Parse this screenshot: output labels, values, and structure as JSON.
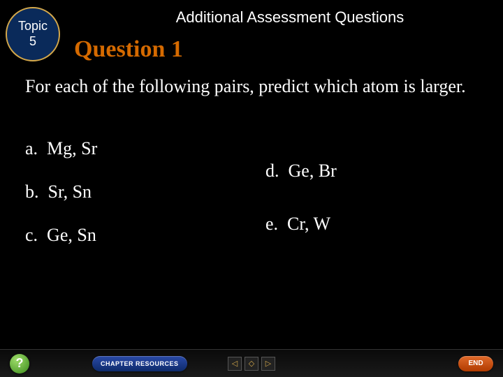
{
  "topic": {
    "label": "Topic",
    "number": "5"
  },
  "header": {
    "title": "Additional Assessment Questions"
  },
  "question": {
    "title": "Question 1",
    "body": "For each of the following pairs, predict which atom is larger."
  },
  "options": {
    "left": [
      {
        "key": "a.",
        "text": "Mg, Sr"
      },
      {
        "key": "b.",
        "text": "Sr, Sn"
      },
      {
        "key": "c.",
        "text": "Ge, Sn"
      }
    ],
    "right": [
      {
        "key": "d.",
        "text": "Ge, Br"
      },
      {
        "key": "e.",
        "text": "Cr, W"
      }
    ]
  },
  "footer": {
    "help": "?",
    "chapter": "CHAPTER RESOURCES",
    "nav_prev": "◁",
    "nav_home": "◇",
    "nav_next": "▷",
    "end": "END"
  },
  "colors": {
    "background": "#000000",
    "topic_fill": "#0a2a5a",
    "topic_border": "#d4a84b",
    "question_title": "#d56a00",
    "body_text": "#ffffff"
  }
}
